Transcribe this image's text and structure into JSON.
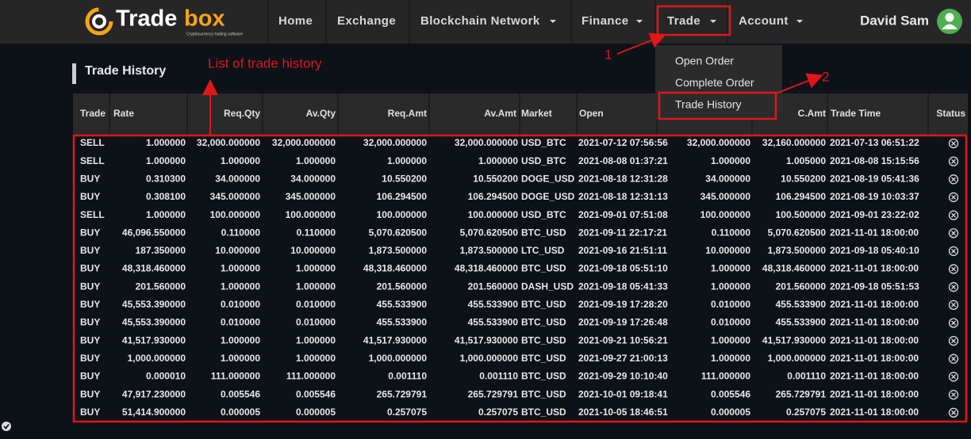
{
  "navbar": {
    "logo": {
      "text_1": "Trade",
      "text_2": "box",
      "tagline": "Cryptocurrency trading software"
    },
    "menu": [
      {
        "label": "Home",
        "caret": false
      },
      {
        "label": "Exchange",
        "caret": false
      },
      {
        "label": "Blockchain Network",
        "caret": true
      },
      {
        "label": "Finance",
        "caret": true
      },
      {
        "label": "Trade",
        "caret": true
      },
      {
        "label": "Account",
        "caret": true
      }
    ],
    "user": "David Sam"
  },
  "dropdown": [
    "Open Order",
    "Complete Order",
    "Trade History"
  ],
  "annotations": {
    "step_1": "1",
    "step_2": "2",
    "list_label": "List of trade history"
  },
  "section_title": "Trade History",
  "table": {
    "headers": [
      "Trade",
      "Rate",
      "Req.Qty",
      "Av.Qty",
      "Req.Amt",
      "Av.Amt",
      "Market",
      "Open",
      null,
      "C.Amt",
      "Trade Time",
      "Status"
    ],
    "rows": [
      [
        "SELL",
        "1.000000",
        "32,000.000000",
        "32,000.000000",
        "32,000.000000",
        "32,000.000000",
        "USD_BTC",
        "2021-07-12 07:56:56",
        "32,000.000000",
        "32,160.000000",
        "2021-07-13 06:51:22"
      ],
      [
        "SELL",
        "1.000000",
        "1.000000",
        "1.000000",
        "1.000000",
        "1.000000",
        "USD_BTC",
        "2021-08-08 01:37:21",
        "1.000000",
        "1.005000",
        "2021-08-08 15:15:56"
      ],
      [
        "BUY",
        "0.310300",
        "34.000000",
        "34.000000",
        "10.550200",
        "10.550200",
        "DOGE_USD",
        "2021-08-18 12:31:28",
        "34.000000",
        "10.550200",
        "2021-08-19 05:41:36"
      ],
      [
        "BUY",
        "0.308100",
        "345.000000",
        "345.000000",
        "106.294500",
        "106.294500",
        "DOGE_USD",
        "2021-08-18 12:31:13",
        "345.000000",
        "106.294500",
        "2021-08-19 10:03:37"
      ],
      [
        "SELL",
        "1.000000",
        "100.000000",
        "100.000000",
        "100.000000",
        "100.000000",
        "USD_BTC",
        "2021-09-01 07:51:08",
        "100.000000",
        "100.500000",
        "2021-09-01 23:22:02"
      ],
      [
        "BUY",
        "46,096.550000",
        "0.110000",
        "0.110000",
        "5,070.620500",
        "5,070.620500",
        "BTC_USD",
        "2021-09-11 22:17:21",
        "0.110000",
        "5,070.620500",
        "2021-11-01 18:00:00"
      ],
      [
        "BUY",
        "187.350000",
        "10.000000",
        "10.000000",
        "1,873.500000",
        "1,873.500000",
        "LTC_USD",
        "2021-09-16 21:51:11",
        "10.000000",
        "1,873.500000",
        "2021-09-18 05:40:10"
      ],
      [
        "BUY",
        "48,318.460000",
        "1.000000",
        "1.000000",
        "48,318.460000",
        "48,318.460000",
        "BTC_USD",
        "2021-09-18 05:51:10",
        "1.000000",
        "48,318.460000",
        "2021-11-01 18:00:00"
      ],
      [
        "BUY",
        "201.560000",
        "1.000000",
        "1.000000",
        "201.560000",
        "201.560000",
        "DASH_USD",
        "2021-09-18 05:41:33",
        "1.000000",
        "201.560000",
        "2021-09-18 05:51:53"
      ],
      [
        "BUY",
        "45,553.390000",
        "0.010000",
        "0.010000",
        "455.533900",
        "455.533900",
        "BTC_USD",
        "2021-09-19 17:28:20",
        "0.010000",
        "455.533900",
        "2021-11-01 18:00:00"
      ],
      [
        "BUY",
        "45,553.390000",
        "0.010000",
        "0.010000",
        "455.533900",
        "455.533900",
        "BTC_USD",
        "2021-09-19 17:26:48",
        "0.010000",
        "455.533900",
        "2021-11-01 18:00:00"
      ],
      [
        "BUY",
        "41,517.930000",
        "1.000000",
        "1.000000",
        "41,517.930000",
        "41,517.930000",
        "BTC_USD",
        "2021-09-21 10:56:21",
        "1.000000",
        "41,517.930000",
        "2021-11-01 18:00:00"
      ],
      [
        "BUY",
        "1,000.000000",
        "1.000000",
        "1.000000",
        "1,000.000000",
        "1,000.000000",
        "BTC_USD",
        "2021-09-27 21:00:13",
        "1.000000",
        "1,000.000000",
        "2021-11-01 18:00:00"
      ],
      [
        "BUY",
        "0.000010",
        "111.000000",
        "111.000000",
        "0.001110",
        "0.001110",
        "BTC_USD",
        "2021-09-29 10:10:40",
        "111.000000",
        "0.001110",
        "2021-11-01 18:00:00"
      ],
      [
        "BUY",
        "47,917.230000",
        "0.005546",
        "0.005546",
        "265.729791",
        "265.729791",
        "BTC_USD",
        "2021-10-01 09:18:41",
        "0.005546",
        "265.729791",
        "2021-11-01 18:00:00"
      ],
      [
        "BUY",
        "51,414.900000",
        "0.000005",
        "0.000005",
        "0.257075",
        "0.257075",
        "BTC_USD",
        "2021-10-05 18:46:51",
        "0.000005",
        "0.257075",
        "2021-11-01 18:00:00"
      ]
    ]
  }
}
